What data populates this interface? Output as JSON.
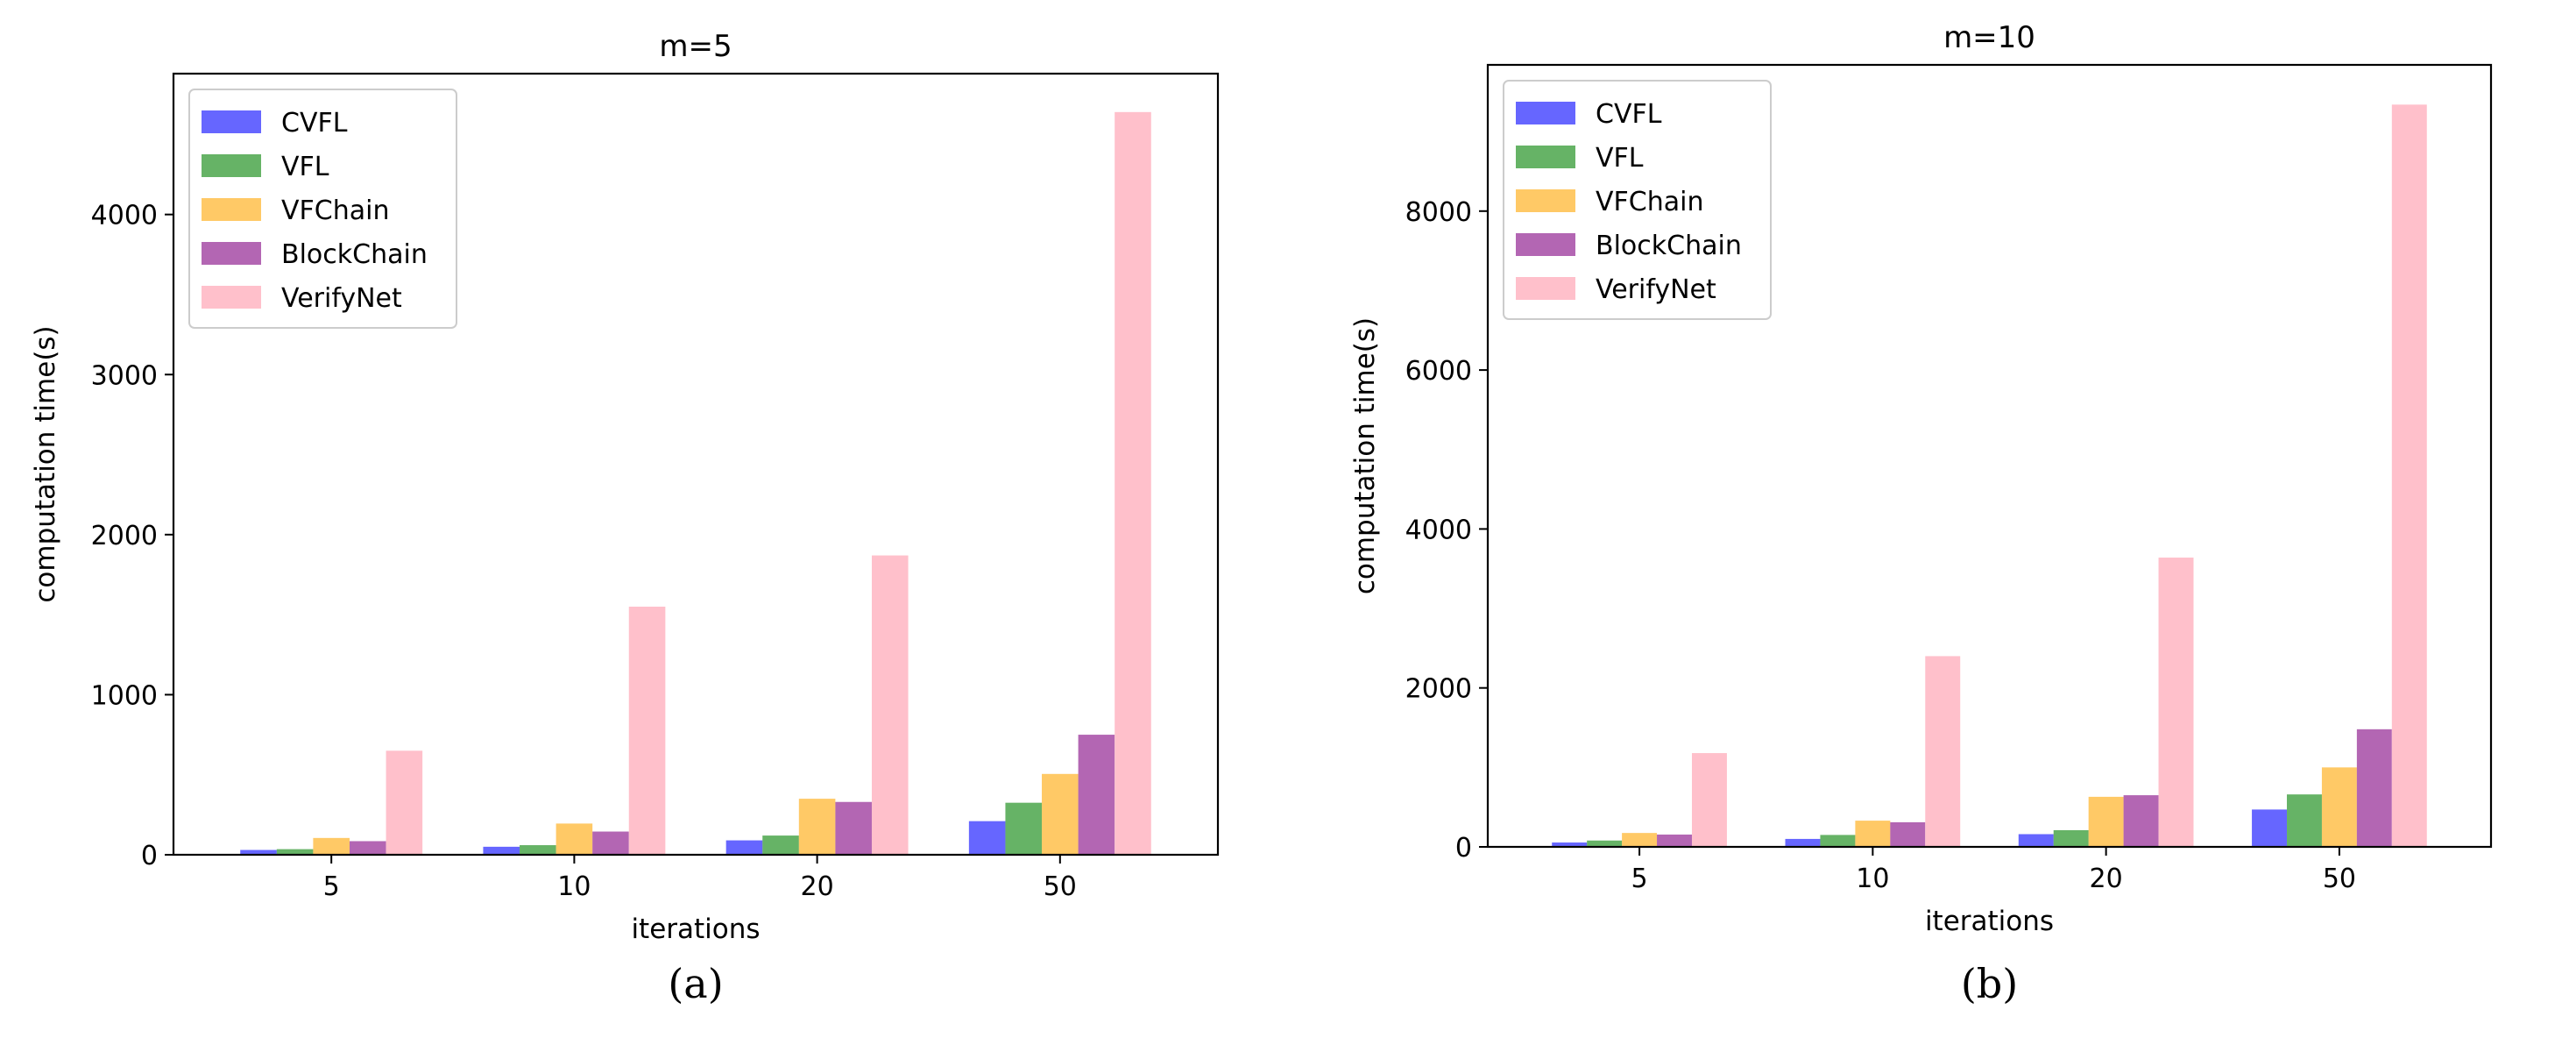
{
  "chart_data": [
    {
      "type": "bar",
      "title": "m=5",
      "xlabel": "iterations",
      "ylabel": "computation time(s)",
      "caption": "(a)",
      "categories": [
        "5",
        "10",
        "20",
        "50"
      ],
      "ylim": [
        0,
        4880
      ],
      "yticks": [
        0,
        1000,
        2000,
        3000,
        4000
      ],
      "legend_position": "top-left",
      "series": [
        {
          "name": "CVFL",
          "color": "#0000ff",
          "values": [
            30,
            50,
            90,
            210
          ]
        },
        {
          "name": "VFL",
          "color": "#008000",
          "values": [
            35,
            60,
            120,
            325
          ]
        },
        {
          "name": "VFChain",
          "color": "#ffa500",
          "values": [
            105,
            195,
            350,
            505
          ]
        },
        {
          "name": "BlockChain",
          "color": "#800080",
          "values": [
            85,
            145,
            330,
            750
          ]
        },
        {
          "name": "VerifyNet",
          "color": "#ffc0cb",
          "values": [
            650,
            1550,
            1870,
            4640
          ]
        }
      ]
    },
    {
      "type": "bar",
      "title": "m=10",
      "xlabel": "iterations",
      "ylabel": "computation time(s)",
      "caption": "(b)",
      "categories": [
        "5",
        "10",
        "20",
        "50"
      ],
      "ylim": [
        0,
        9840
      ],
      "yticks": [
        0,
        2000,
        4000,
        6000,
        8000
      ],
      "legend_position": "top-left",
      "series": [
        {
          "name": "CVFL",
          "color": "#0000ff",
          "values": [
            55,
            100,
            160,
            470
          ]
        },
        {
          "name": "VFL",
          "color": "#008000",
          "values": [
            80,
            150,
            210,
            660
          ]
        },
        {
          "name": "VFChain",
          "color": "#ffa500",
          "values": [
            175,
            330,
            630,
            1000
          ]
        },
        {
          "name": "BlockChain",
          "color": "#800080",
          "values": [
            155,
            310,
            650,
            1480
          ]
        },
        {
          "name": "VerifyNet",
          "color": "#ffc0cb",
          "values": [
            1180,
            2400,
            3640,
            9340
          ]
        }
      ]
    }
  ]
}
